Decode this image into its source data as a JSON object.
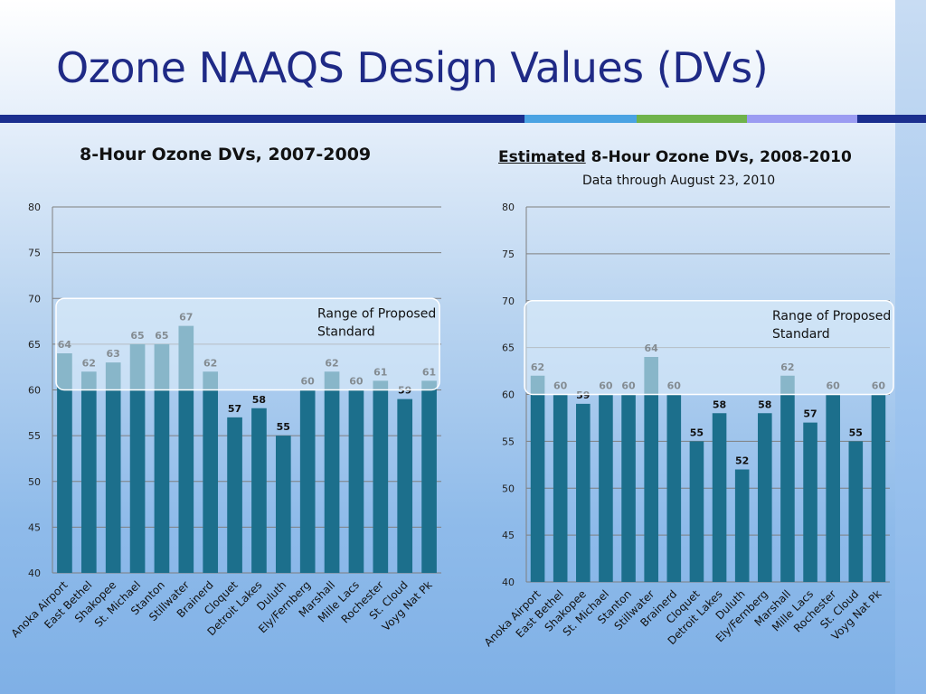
{
  "slide": {
    "title": "Ozone NAAQS Design Values (DVs)",
    "stripe_colors": [
      "#1b2f8f",
      "#4aa3e3",
      "#6fb34b",
      "#9b9cf2",
      "#1b2f8f"
    ]
  },
  "colors": {
    "bar": "#1c6f8c",
    "band_fill": "#e1f0fb",
    "band_stroke": "#ffffff",
    "grid": "#7f7f7f"
  },
  "left_chart": {
    "heading": "8-Hour Ozone DVs, 2007-2009"
  },
  "right_chart": {
    "heading_underlined": "Estimated",
    "heading_rest": " 8-Hour Ozone DVs, 2008-2010",
    "subtitle": "Data through August 23, 2010"
  },
  "chart_data": [
    {
      "type": "bar",
      "title": "8-Hour Ozone DVs, 2007-2009",
      "categories": [
        "Anoka Airport",
        "East Bethel",
        "Shakopee",
        "St. Michael",
        "Stanton",
        "Stillwater",
        "Brainerd",
        "Cloquet",
        "Detroit Lakes",
        "Duluth",
        "Ely/Fernberg",
        "Marshall",
        "Mille Lacs",
        "Rochester",
        "St. Cloud",
        "Voyg Nat Pk"
      ],
      "values": [
        64,
        62,
        63,
        65,
        65,
        67,
        62,
        57,
        58,
        55,
        60,
        62,
        60,
        61,
        59,
        61
      ],
      "ylim": [
        40,
        80
      ],
      "yticks": [
        40,
        45,
        50,
        55,
        60,
        65,
        70,
        75,
        80
      ],
      "band": {
        "range": [
          60,
          70
        ],
        "label_line1": "Range of Proposed",
        "label_line2": "Standard"
      },
      "xlabel": "",
      "ylabel": ""
    },
    {
      "type": "bar",
      "title": "Estimated 8-Hour Ozone DVs, 2008-2010",
      "subtitle": "Data through August 23, 2010",
      "categories": [
        "Anoka Airport",
        "East Bethel",
        "Shakopee",
        "St. Michael",
        "Stanton",
        "Stillwater",
        "Brainerd",
        "Cloquet",
        "Detroit Lakes",
        "Duluth",
        "Ely/Fernberg",
        "Marshall",
        "Mille Lacs",
        "Rochester",
        "St. Cloud",
        "Voyg Nat Pk"
      ],
      "values": [
        62,
        60,
        59,
        60,
        60,
        64,
        60,
        55,
        58,
        52,
        58,
        62,
        57,
        60,
        55,
        60
      ],
      "ylim": [
        40,
        80
      ],
      "yticks": [
        40,
        45,
        50,
        55,
        60,
        65,
        70,
        75,
        80
      ],
      "band": {
        "range": [
          60,
          70
        ],
        "label_line1": "Range of Proposed",
        "label_line2": "Standard"
      },
      "xlabel": "",
      "ylabel": ""
    }
  ]
}
